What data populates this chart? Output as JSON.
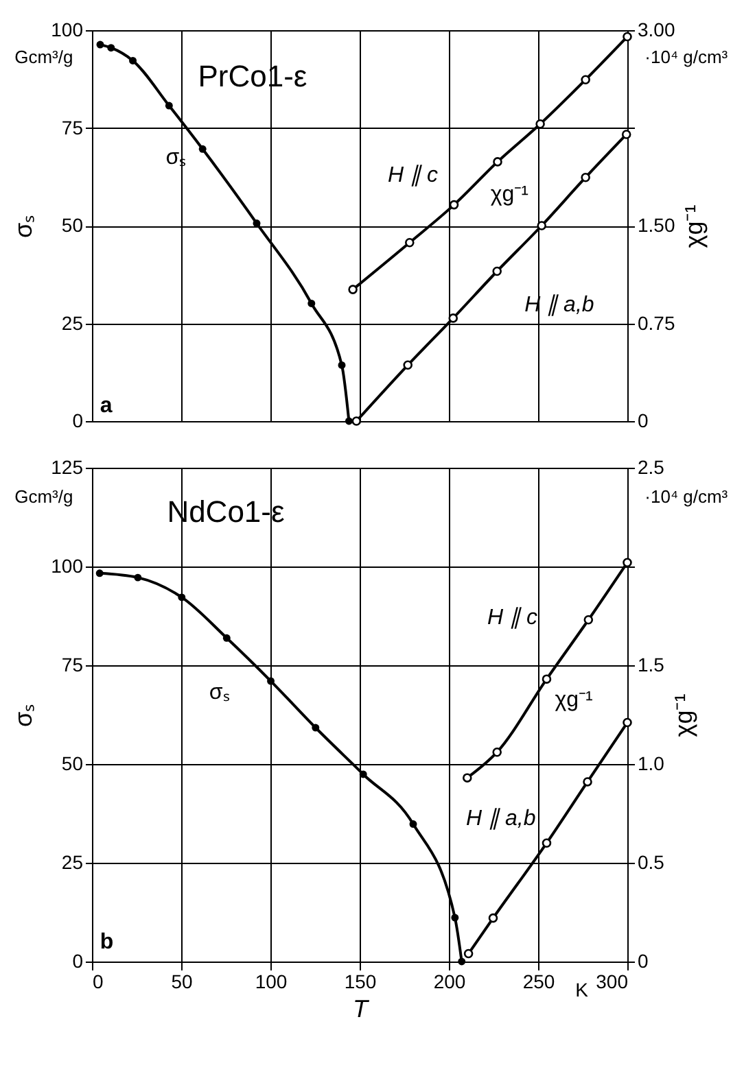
{
  "chart_data": [
    {
      "type": "line",
      "xlim": [
        0,
        300
      ],
      "xticks": [
        0,
        50,
        100,
        150,
        200,
        250,
        300
      ],
      "ylim": [
        0,
        100
      ],
      "yticks": [
        0,
        25,
        50,
        75,
        100
      ],
      "y2lim": [
        0,
        3
      ],
      "y2ticks": [
        {
          "value": 0,
          "label": "0"
        },
        {
          "value": 0.75,
          "label": "0.75"
        },
        {
          "value": 1.5,
          "label": "1.50"
        },
        {
          "value": 2.25,
          "label": null
        },
        {
          "value": 3,
          "label": "3.00"
        }
      ],
      "ylabel": "σₛ",
      "y2label": "χg⁻¹",
      "tick_labels": "y",
      "grid": true,
      "marker": "circle",
      "line_style": "solid",
      "series": [
        {
          "name": "σₛ",
          "color": "#000000",
          "x": [
            4.6,
            10.7,
            22.9,
            43.2,
            62,
            92.3,
            123,
            140,
            144
          ],
          "values": [
            96.3,
            95.5,
            92.2,
            80.7,
            69.6,
            50.6,
            30.1,
            14.3,
            0
          ]
        },
        {
          "name": "H ∥ c",
          "color": "#000000",
          "axis": "y2",
          "x": [
            146.2,
            178,
            202.9,
            227.3,
            251.2,
            276.6,
            300
          ],
          "values": [
            1.01,
            1.37,
            1.66,
            1.99,
            2.28,
            2.62,
            2.95
          ]
        },
        {
          "name": "H ∥ a,b",
          "color": "#000000",
          "axis": "y2",
          "x": [
            148.2,
            177,
            202.4,
            227,
            252,
            276.6,
            299.5
          ],
          "values": [
            0,
            0.43,
            0.79,
            1.15,
            1.5,
            1.87,
            2.2
          ]
        }
      ],
      "annotations": [
        "Gcm³/g",
        "·10⁴ g/cm³",
        "PrCo1-ε",
        "a",
        "χg⁻¹"
      ]
    },
    {
      "type": "line",
      "xlim": [
        0,
        300
      ],
      "xticks": [
        0,
        50,
        100,
        150,
        200,
        250,
        300
      ],
      "ylim": [
        0,
        125
      ],
      "yticks": [
        0,
        25,
        50,
        75,
        100,
        125
      ],
      "y2lim": [
        0,
        2.5
      ],
      "y2ticks": [
        {
          "value": 0,
          "label": "0"
        },
        {
          "value": 0.5,
          "label": "0.5"
        },
        {
          "value": 1,
          "label": "1.0"
        },
        {
          "value": 1.5,
          "label": "1.5"
        },
        {
          "value": 2,
          "label": null
        },
        {
          "value": 2.5,
          "label": "2.5"
        }
      ],
      "xlabel": "T",
      "ylabel": "σₛ",
      "y2label": "χg⁻¹",
      "grid": true,
      "marker": "circle",
      "line_style": "solid",
      "series": [
        {
          "name": "σₛ",
          "color": "#000000",
          "x": [
            4.3,
            25.7,
            50.3,
            75.5,
            100.2,
            125.3,
            152,
            180,
            203.4,
            207.2
          ],
          "values": [
            98.3,
            97.2,
            92.2,
            81.9,
            71.0,
            59.2,
            47.4,
            34.8,
            11.1,
            0
          ]
        },
        {
          "name": "H ∥ c",
          "color": "#000000",
          "axis": "y2",
          "x": [
            210.3,
            227,
            254.8,
            278.2,
            300
          ],
          "values": [
            0.93,
            1.06,
            1.43,
            1.73,
            2.02
          ]
        },
        {
          "name": "H ∥ a,b",
          "color": "#000000",
          "axis": "y2",
          "x": [
            211,
            224.8,
            254.8,
            277.7,
            300
          ],
          "values": [
            0.04,
            0.22,
            0.6,
            0.91,
            1.21
          ]
        }
      ],
      "annotations": [
        "Gcm³/g",
        "·10⁴ g/cm³",
        "NdCo1-ε",
        "b",
        "χg⁻¹",
        "K"
      ]
    }
  ]
}
